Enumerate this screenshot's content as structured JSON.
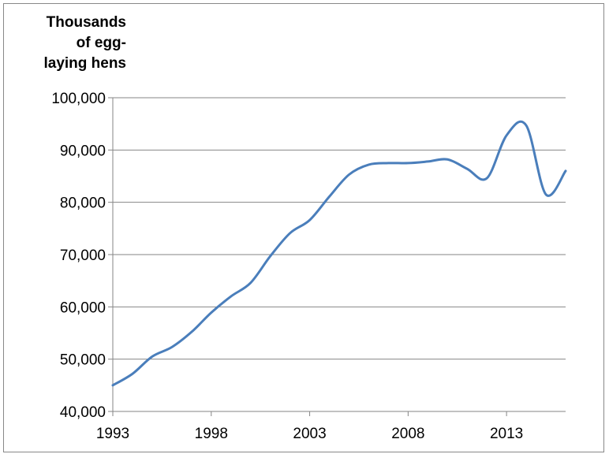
{
  "chart_data": {
    "type": "line",
    "title": "",
    "xlabel": "",
    "ylabel": "Thousands\nof egg-\nlaying hens",
    "xlim": [
      1993,
      2016
    ],
    "ylim": [
      40000,
      100000
    ],
    "x_ticks": [
      1993,
      1998,
      2003,
      2008,
      2013
    ],
    "x_tick_labels": [
      "1993",
      "1998",
      "2003",
      "2008",
      "2013"
    ],
    "y_ticks": [
      40000,
      50000,
      60000,
      70000,
      80000,
      90000,
      100000
    ],
    "y_tick_labels": [
      "40,000",
      "50,000",
      "60,000",
      "70,000",
      "80,000",
      "90,000",
      "100,000"
    ],
    "grid": "horizontal",
    "legend": "none",
    "series": [
      {
        "color": "#4a7ebb",
        "x": [
          1993,
          1994,
          1995,
          1996,
          1997,
          1998,
          1999,
          2000,
          2001,
          2002,
          2003,
          2004,
          2005,
          2006,
          2007,
          2008,
          2009,
          2010,
          2011,
          2012,
          2013,
          2014,
          2015,
          2016
        ],
        "y": [
          45000,
          47200,
          50500,
          52300,
          55200,
          58900,
          62000,
          64600,
          69700,
          74100,
          76600,
          81100,
          85300,
          87200,
          87500,
          87500,
          87800,
          88200,
          86400,
          84600,
          92800,
          94700,
          81500,
          86000
        ]
      }
    ]
  }
}
